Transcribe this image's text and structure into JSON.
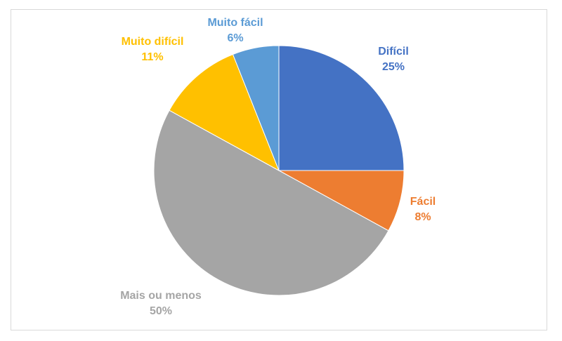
{
  "chart_data": {
    "type": "pie",
    "title": "",
    "slices": [
      {
        "label": "Difícil",
        "value": 25,
        "value_label": "25%",
        "color": "#4472C4"
      },
      {
        "label": "Fácil",
        "value": 8,
        "value_label": "8%",
        "color": "#ED7D31"
      },
      {
        "label": "Mais ou menos",
        "value": 50,
        "value_label": "50%",
        "color": "#A5A5A5"
      },
      {
        "label": "Muito difícil",
        "value": 11,
        "value_label": "11%",
        "color": "#FFC000"
      },
      {
        "label": "Muito fácil",
        "value": 6,
        "value_label": "6%",
        "color": "#5B9BD5"
      }
    ],
    "start_angle": "12 o'clock, clockwise",
    "legend": "none (data labels beside slices)"
  }
}
